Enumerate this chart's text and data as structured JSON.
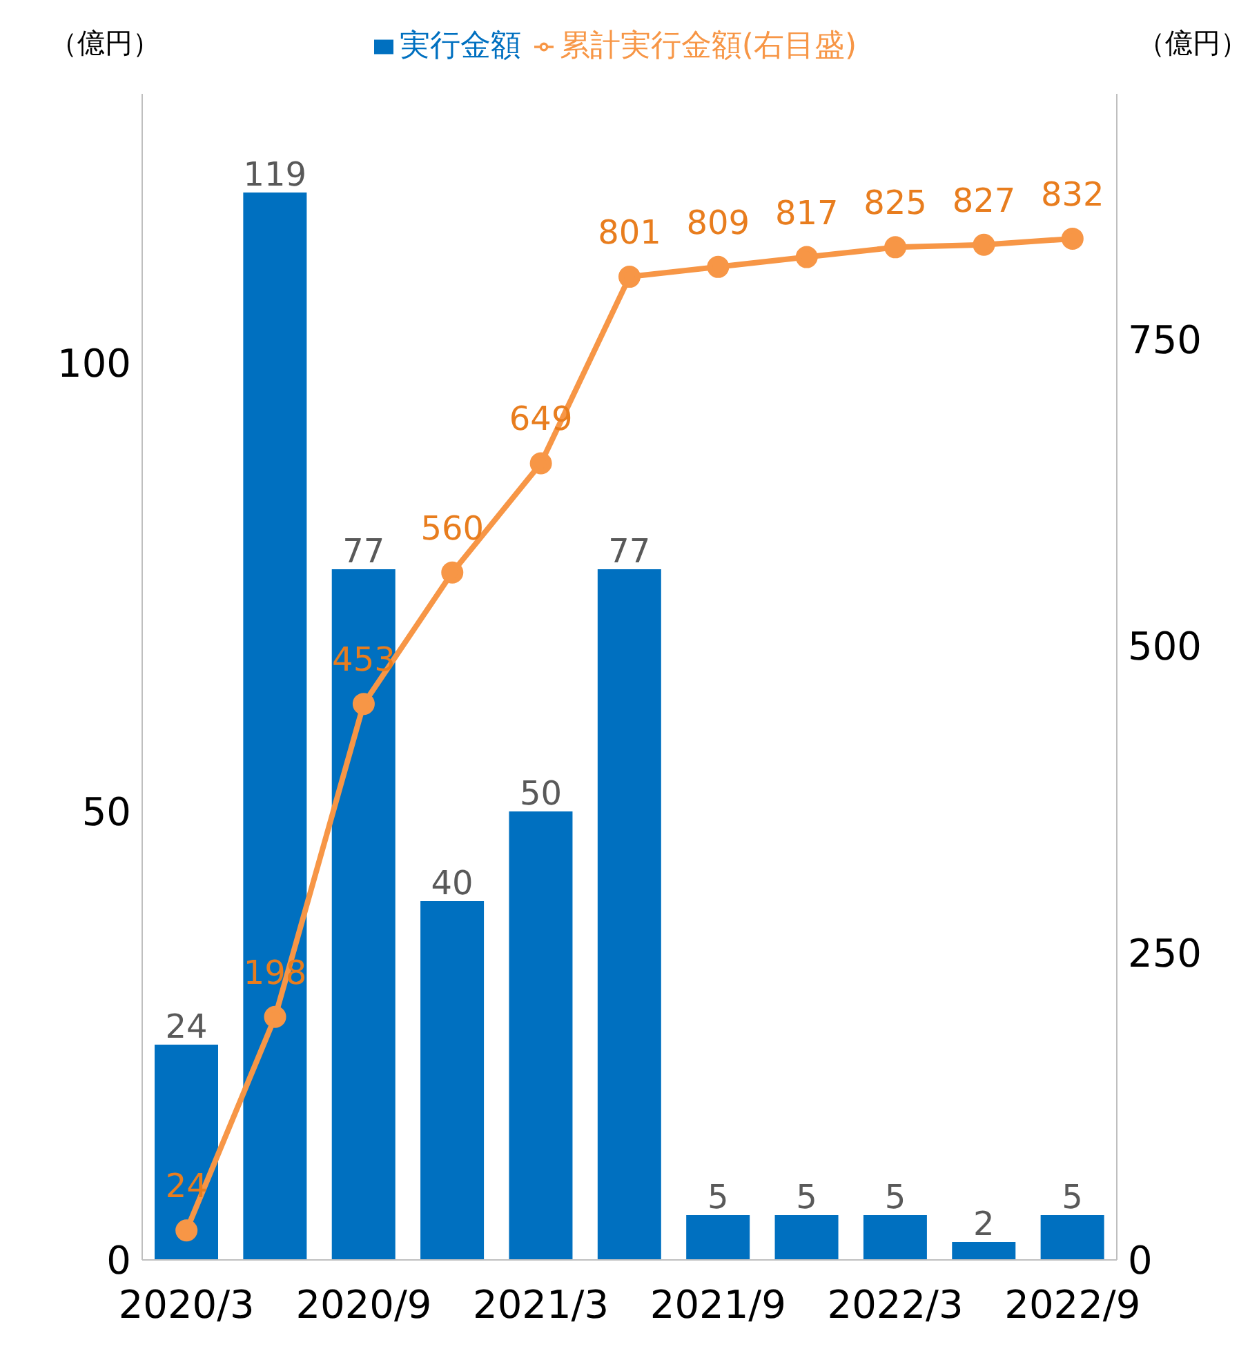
{
  "chart_data": {
    "type": "bar",
    "ylabel": "（億円）",
    "y2label": "（億円）",
    "categories": [
      "2020/3",
      null,
      "2020/9",
      null,
      "2021/3",
      null,
      "2021/9",
      null,
      "2022/3",
      null,
      "2022/9"
    ],
    "series": [
      {
        "name": "実行金額",
        "color": "#0070c0",
        "values": [
          24,
          119,
          77,
          40,
          50,
          77,
          5,
          5,
          5,
          2,
          5
        ]
      },
      {
        "name": "累計実行金額(右目盛)",
        "type": "line",
        "axis": "y2",
        "color": "#f79646",
        "values": [
          24,
          198,
          453,
          560,
          649,
          801,
          809,
          817,
          825,
          827,
          832
        ]
      }
    ],
    "ylim": [
      0,
      130
    ],
    "yticks": [
      0,
      50,
      100
    ],
    "y2lim": [
      0,
      950
    ],
    "y2ticks": [
      0,
      250,
      500,
      750
    ],
    "data_labels": true,
    "legend": "top",
    "grid": false,
    "marker": "circle"
  }
}
